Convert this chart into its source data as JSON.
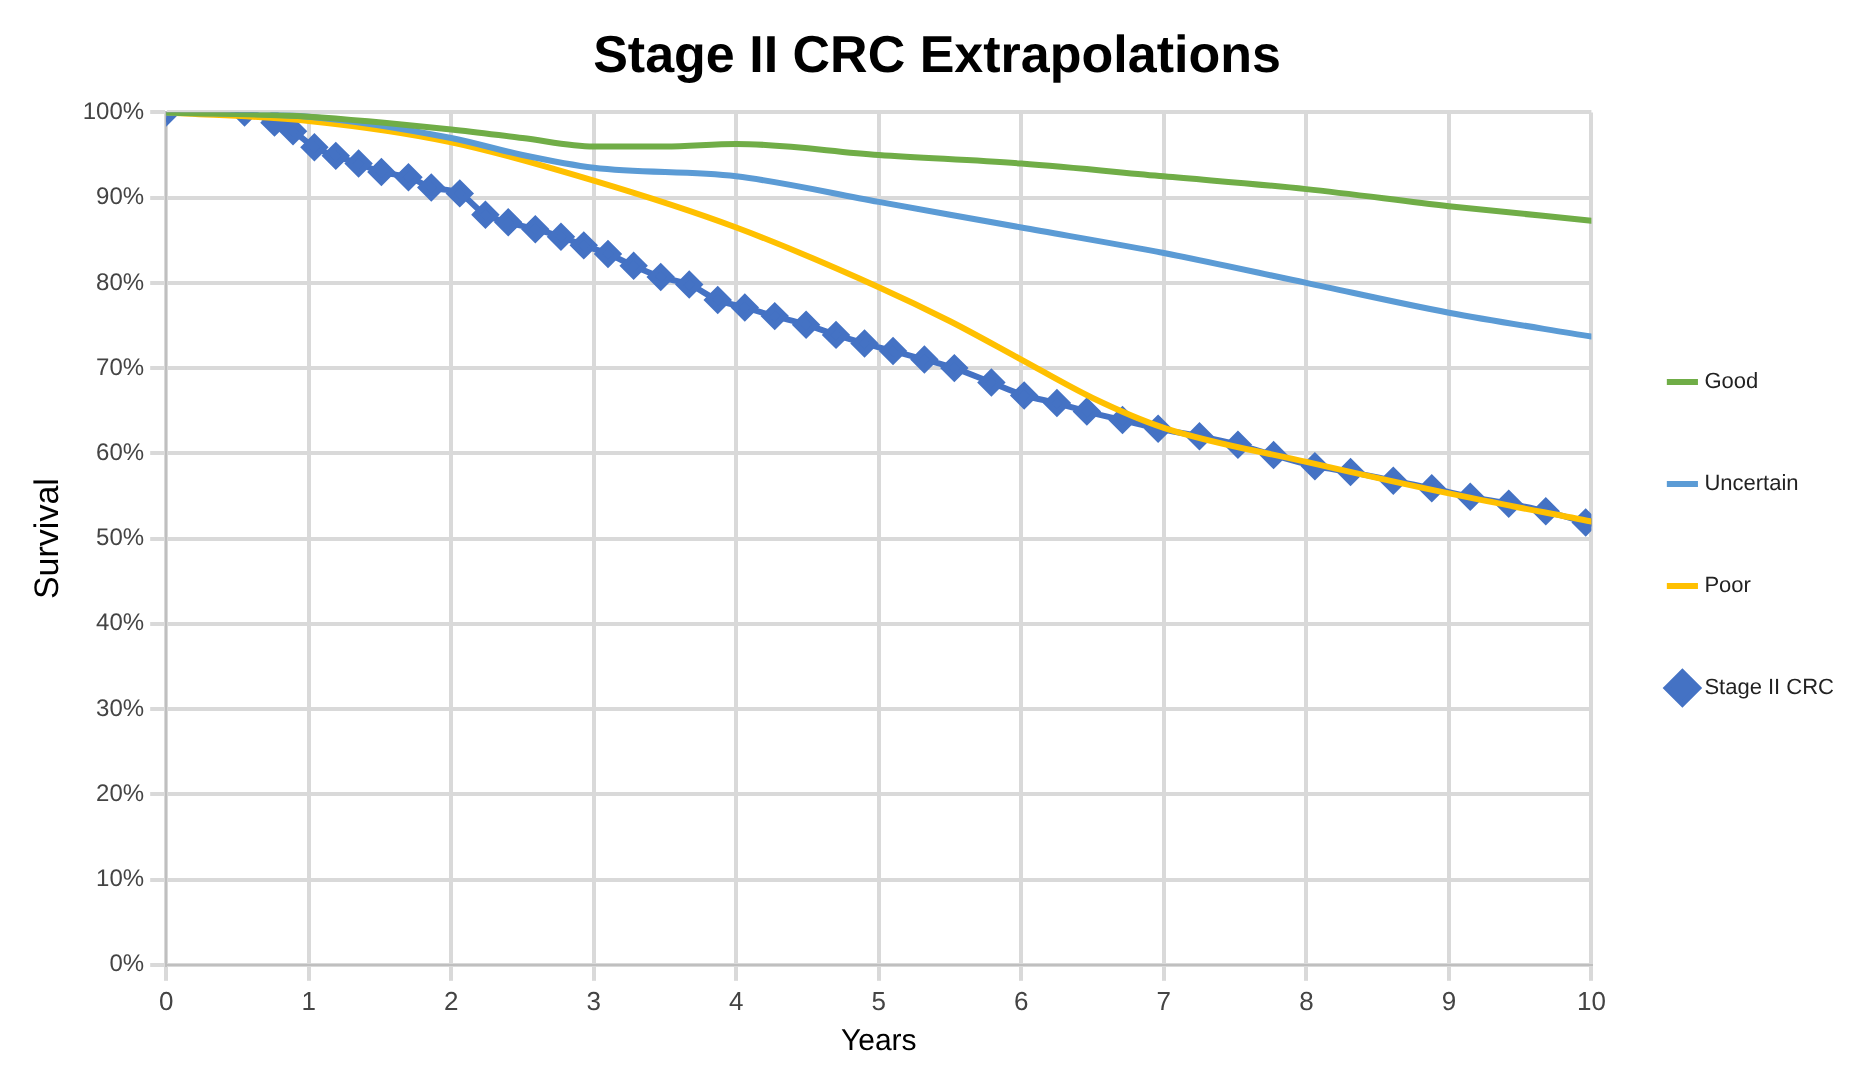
{
  "chart_data": {
    "type": "line",
    "title": "Stage II CRC Extrapolations",
    "xlabel": "Years",
    "ylabel": "Survival",
    "xlim": [
      0,
      10
    ],
    "xticks": [
      0,
      1,
      2,
      3,
      4,
      5,
      6,
      7,
      8,
      9,
      10
    ],
    "ylim": [
      0,
      100
    ],
    "yticks": [
      {
        "value": 0,
        "label": "0%"
      },
      {
        "value": 10,
        "label": "10%"
      },
      {
        "value": 20,
        "label": "20%"
      },
      {
        "value": 30,
        "label": "30%"
      },
      {
        "value": 40,
        "label": "40%"
      },
      {
        "value": 50,
        "label": "50%"
      },
      {
        "value": 60,
        "label": "60%"
      },
      {
        "value": 70,
        "label": "70%"
      },
      {
        "value": 80,
        "label": "80%"
      },
      {
        "value": 90,
        "label": "90%"
      },
      {
        "value": 100,
        "label": "100%"
      }
    ],
    "grid": true,
    "legend": "right",
    "line_style": "solid",
    "series": [
      {
        "name": "Good",
        "color": "#70ad47",
        "marker": "none",
        "x": [
          0,
          1,
          2,
          2.5,
          3,
          3.5,
          4,
          5,
          6,
          7,
          8,
          9,
          10
        ],
        "values": [
          100,
          99.5,
          98,
          97,
          96,
          96,
          96.3,
          95,
          94,
          92.5,
          91,
          89,
          87.3
        ]
      },
      {
        "name": "Uncertain",
        "color": "#5b9bd5",
        "marker": "none",
        "x": [
          0,
          1,
          2,
          2.5,
          3,
          4,
          5,
          6,
          7,
          8,
          9,
          10
        ],
        "values": [
          100,
          99.5,
          97,
          95,
          93.5,
          92.5,
          89.5,
          86.5,
          83.5,
          80,
          76.5,
          73.7
        ]
      },
      {
        "name": "Poor",
        "color": "#ffc000",
        "marker": "none",
        "x": [
          0,
          1,
          2,
          3,
          4,
          5,
          5.5,
          6,
          6.5,
          7,
          8,
          9,
          10
        ],
        "values": [
          100,
          99,
          96.5,
          92,
          86.5,
          79.5,
          75.5,
          71,
          66.5,
          63,
          59,
          55.3,
          52
        ]
      },
      {
        "name": "Stage II CRC",
        "color": "#4472c4",
        "marker": "diamond",
        "x": [
          0,
          0.55,
          0.76,
          0.89,
          1.04,
          1.19,
          1.35,
          1.51,
          1.7,
          1.86,
          2.06,
          2.24,
          2.4,
          2.59,
          2.77,
          2.93,
          3.1,
          3.28,
          3.47,
          3.67,
          3.87,
          4.06,
          4.27,
          4.49,
          4.7,
          4.9,
          5.1,
          5.32,
          5.53,
          5.79,
          6.02,
          6.25,
          6.46,
          6.71,
          6.96,
          7.25,
          7.52,
          7.77,
          8.06,
          8.31,
          8.61,
          8.88,
          9.15,
          9.42,
          9.68,
          9.96
        ],
        "values": [
          100,
          100,
          98.8,
          97.8,
          95.9,
          94.9,
          94,
          93,
          92.4,
          91.2,
          90.5,
          88,
          87.1,
          86.3,
          85.4,
          84.4,
          83.4,
          82,
          80.7,
          79.8,
          78,
          77.1,
          76.1,
          75.1,
          73.9,
          72.9,
          72,
          71,
          70,
          68.3,
          66.8,
          65.9,
          64.9,
          63.9,
          62.9,
          62,
          61,
          59.8,
          58.5,
          57.8,
          56.8,
          55.9,
          54.9,
          54.1,
          53.2,
          51.9
        ]
      }
    ]
  }
}
